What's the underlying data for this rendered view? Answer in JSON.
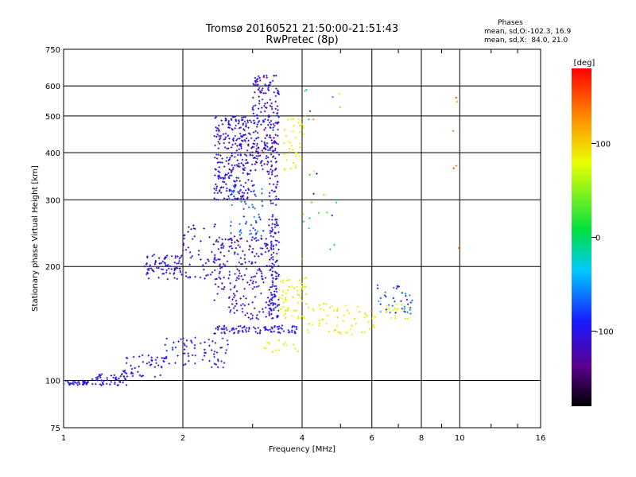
{
  "chart_data": {
    "type": "scatter",
    "title": "Tromsø 20160521 21:50:00-21:51:43",
    "subtitle": "RwPretec (8p)",
    "xlabel": "Frequency [MHz]",
    "ylabel": "Stationary phase Virtual Height [km]",
    "x_scale": "log",
    "y_scale": "log",
    "xlim": [
      1,
      16
    ],
    "ylim": [
      75,
      750
    ],
    "x_ticks": [
      "1",
      "2",
      "4",
      "6",
      "8",
      "10",
      "16"
    ],
    "x_tick_values": [
      1,
      2,
      4,
      6,
      8,
      10,
      16
    ],
    "y_ticks": [
      "75",
      "100",
      "200",
      "300",
      "400",
      "500",
      "600",
      "750"
    ],
    "y_tick_values": [
      75,
      100,
      200,
      300,
      400,
      500,
      600,
      750
    ],
    "grid": true,
    "stats": {
      "heading": "Phases",
      "line1": "mean, sd,O:-102.3, 16.9",
      "line2": "mean, sd,X:  84.0, 21.0"
    },
    "colorbar": {
      "label": "[deg]",
      "ticks": [
        "100",
        "0",
        "-100"
      ],
      "tick_values": [
        100,
        0,
        -100
      ],
      "range": [
        -180,
        180
      ]
    },
    "clusters": [
      {
        "x": [
          1.0,
          1.15
        ],
        "y": [
          97,
          100
        ],
        "phase": [
          -110,
          -90
        ],
        "n": 35
      },
      {
        "x": [
          1.15,
          1.45
        ],
        "y": [
          97,
          104
        ],
        "phase": [
          -110,
          -90
        ],
        "n": 50
      },
      {
        "x": [
          1.4,
          1.8
        ],
        "y": [
          102,
          118
        ],
        "phase": [
          -115,
          -85
        ],
        "n": 50
      },
      {
        "x": [
          1.8,
          2.6
        ],
        "y": [
          108,
          130
        ],
        "phase": [
          -115,
          -75
        ],
        "n": 70
      },
      {
        "x": [
          2.4,
          4.0
        ],
        "y": [
          133,
          140
        ],
        "phase": [
          -115,
          -85
        ],
        "n": 90
      },
      {
        "x": [
          1.6,
          2.0
        ],
        "y": [
          185,
          215
        ],
        "phase": [
          -130,
          -80
        ],
        "n": 80
      },
      {
        "x": [
          2.0,
          2.5
        ],
        "y": [
          185,
          260
        ],
        "phase": [
          -135,
          -90
        ],
        "n": 60
      },
      {
        "x": [
          2.4,
          3.0
        ],
        "y": [
          300,
          500
        ],
        "phase": [
          -130,
          -80
        ],
        "n": 280
      },
      {
        "x": [
          2.6,
          3.2
        ],
        "y": [
          240,
          330
        ],
        "phase": [
          -100,
          -50
        ],
        "n": 60
      },
      {
        "x": [
          2.4,
          3.4
        ],
        "y": [
          145,
          240
        ],
        "phase": [
          -140,
          -80
        ],
        "n": 220
      },
      {
        "x": [
          3.0,
          3.5
        ],
        "y": [
          350,
          640
        ],
        "phase": [
          -140,
          -80
        ],
        "n": 230
      },
      {
        "x": [
          3.3,
          3.5
        ],
        "y": [
          145,
          350
        ],
        "phase": [
          -130,
          -80
        ],
        "n": 130
      },
      {
        "x": [
          3.5,
          4.1
        ],
        "y": [
          145,
          190
        ],
        "phase": [
          75,
          100
        ],
        "n": 60
      },
      {
        "x": [
          3.6,
          4.1
        ],
        "y": [
          360,
          500
        ],
        "phase": [
          70,
          100
        ],
        "n": 40
      },
      {
        "x": [
          4.1,
          6.2
        ],
        "y": [
          132,
          160
        ],
        "phase": [
          75,
          100
        ],
        "n": 60
      },
      {
        "x": [
          6.2,
          7.6
        ],
        "y": [
          150,
          180
        ],
        "phase": [
          -120,
          -40
        ],
        "n": 40
      },
      {
        "x": [
          6.5,
          7.5
        ],
        "y": [
          145,
          160
        ],
        "phase": [
          70,
          95
        ],
        "n": 20
      },
      {
        "x": [
          3.2,
          3.9
        ],
        "y": [
          118,
          128
        ],
        "phase": [
          70,
          95
        ],
        "n": 15
      },
      {
        "x": [
          4.0,
          5.0
        ],
        "y": [
          200,
          600
        ],
        "phase": [
          -130,
          140
        ],
        "n": 25
      },
      {
        "x": [
          9.3,
          10.2
        ],
        "y": [
          210,
          580
        ],
        "phase": [
          110,
          160
        ],
        "n": 6
      }
    ]
  }
}
